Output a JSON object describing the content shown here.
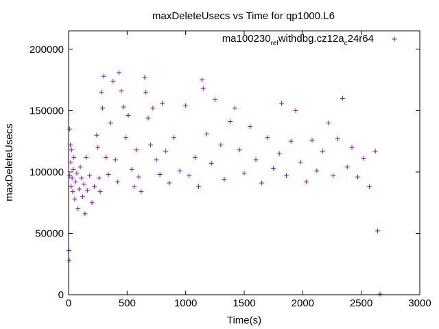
{
  "chart_data": {
    "type": "scatter",
    "title": "maxDeleteUsecs vs Time for qp1000.L6",
    "xlabel": "Time(s)",
    "ylabel": "maxDeleteUsecs",
    "xlim": [
      0,
      3000
    ],
    "ylim": [
      0,
      215000
    ],
    "xticks": [
      0,
      500,
      1000,
      1500,
      2000,
      2500,
      3000
    ],
    "yticks": [
      0,
      50000,
      100000,
      150000,
      200000
    ],
    "xtick_labels": [
      "0",
      "500",
      "1000",
      "1500",
      "2000",
      "2500",
      "3000"
    ],
    "ytick_labels": [
      "0",
      "50000",
      "100000",
      "150000",
      "200000"
    ],
    "grid": false,
    "legend_position": "top-right",
    "marker": "plus",
    "series": [
      {
        "name": "ma100230_rel_withdbg.cz12a_c24r64",
        "legend_text": {
          "t1": "ma100230",
          "s1": "rel",
          "t2": "withdbg.cz12a",
          "s2": "c",
          "t3": "24r64"
        },
        "color": "#9400d3",
        "points": [
          [
            3,
            36000
          ],
          [
            5,
            28000
          ],
          [
            8,
            135000
          ],
          [
            10,
            97000
          ],
          [
            14,
            122000
          ],
          [
            18,
            108000
          ],
          [
            22,
            88000
          ],
          [
            25,
            118000
          ],
          [
            30,
            95000
          ],
          [
            35,
            84000
          ],
          [
            40,
            102000
          ],
          [
            45,
            112000
          ],
          [
            52,
            78000
          ],
          [
            60,
            92000
          ],
          [
            70,
            99000
          ],
          [
            80,
            70000
          ],
          [
            90,
            86000
          ],
          [
            100,
            104000
          ],
          [
            110,
            95000
          ],
          [
            120,
            80000
          ],
          [
            130,
            90000
          ],
          [
            140,
            66000
          ],
          [
            150,
            112000
          ],
          [
            160,
            85000
          ],
          [
            180,
            97000
          ],
          [
            200,
            75000
          ],
          [
            220,
            88000
          ],
          [
            240,
            130000
          ],
          [
            250,
            120000
          ],
          [
            260,
            95000
          ],
          [
            270,
            84000
          ],
          [
            280,
            165000
          ],
          [
            290,
            152000
          ],
          [
            300,
            178000
          ],
          [
            320,
            112000
          ],
          [
            340,
            98000
          ],
          [
            360,
            140000
          ],
          [
            380,
            174000
          ],
          [
            400,
            110000
          ],
          [
            420,
            92000
          ],
          [
            430,
            181000
          ],
          [
            450,
            166000
          ],
          [
            470,
            153000
          ],
          [
            490,
            128000
          ],
          [
            510,
            146000
          ],
          [
            540,
            102000
          ],
          [
            560,
            88000
          ],
          [
            580,
            118000
          ],
          [
            600,
            96000
          ],
          [
            620,
            84000
          ],
          [
            650,
            177000
          ],
          [
            660,
            165000
          ],
          [
            680,
            144000
          ],
          [
            700,
            122000
          ],
          [
            720,
            152000
          ],
          [
            750,
            110000
          ],
          [
            780,
            98000
          ],
          [
            800,
            156000
          ],
          [
            830,
            117000
          ],
          [
            860,
            91000
          ],
          [
            900,
            128000
          ],
          [
            950,
            101000
          ],
          [
            1000,
            154000
          ],
          [
            1030,
            97000
          ],
          [
            1080,
            112000
          ],
          [
            1110,
            88000
          ],
          [
            1140,
            175000
          ],
          [
            1150,
            168000
          ],
          [
            1180,
            131000
          ],
          [
            1220,
            107000
          ],
          [
            1250,
            159000
          ],
          [
            1300,
            122000
          ],
          [
            1330,
            94000
          ],
          [
            1380,
            141000
          ],
          [
            1420,
            152000
          ],
          [
            1460,
            118000
          ],
          [
            1500,
            99000
          ],
          [
            1550,
            137000
          ],
          [
            1600,
            110000
          ],
          [
            1650,
            91000
          ],
          [
            1700,
            128000
          ],
          [
            1750,
            103000
          ],
          [
            1800,
            115000
          ],
          [
            1820,
            156000
          ],
          [
            1860,
            97000
          ],
          [
            1900,
            125000
          ],
          [
            1940,
            150000
          ],
          [
            1980,
            108000
          ],
          [
            2030,
            92000
          ],
          [
            2080,
            126000
          ],
          [
            2120,
            101000
          ],
          [
            2170,
            117000
          ],
          [
            2220,
            140000
          ],
          [
            2260,
            97000
          ],
          [
            2300,
            127000
          ],
          [
            2340,
            160000
          ],
          [
            2380,
            104000
          ],
          [
            2420,
            120000
          ],
          [
            2470,
            96000
          ],
          [
            2520,
            111000
          ],
          [
            2570,
            88000
          ],
          [
            2620,
            117000
          ],
          [
            2640,
            52000
          ],
          [
            2660,
            500
          ]
        ]
      }
    ]
  }
}
